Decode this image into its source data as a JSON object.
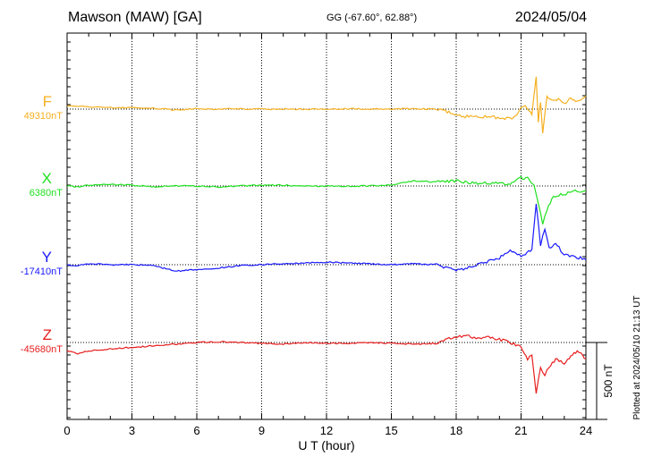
{
  "header": {
    "station": "Mawson (MAW)  [GA]",
    "coords": "GG (-67.60°,  62.88°)",
    "date": "2024/05/04"
  },
  "footer_note": "Plotted at 2024/05/10 21:13 UT",
  "chart_data": {
    "type": "line",
    "title": "Mawson (MAW)  [GA]",
    "xlabel": "U T (hour)",
    "xlim": [
      0,
      24
    ],
    "xticks": [
      "0",
      "3",
      "6",
      "9",
      "12",
      "15",
      "18",
      "21",
      "24"
    ],
    "grid": true,
    "scale_bar": {
      "label": "500 nT",
      "value_nT": 500
    },
    "y_range_nT": 2350,
    "series": [
      {
        "name": "F",
        "baseline": "49310nT",
        "color": "#f5b020",
        "x": [
          0,
          0.5,
          1,
          2,
          3,
          4,
          5,
          6,
          7,
          8,
          9,
          10,
          11,
          12,
          13,
          14,
          15,
          16,
          17,
          17.5,
          18,
          18.5,
          19,
          19.5,
          20,
          20.5,
          20.8,
          21,
          21.2,
          21.5,
          21.7,
          21.8,
          21.9,
          22,
          22.2,
          22.5,
          22.8,
          23,
          23.3,
          23.6,
          24
        ],
        "values": [
          20,
          18,
          12,
          8,
          10,
          5,
          -5,
          2,
          0,
          2,
          0,
          0,
          -2,
          0,
          2,
          0,
          0,
          3,
          0,
          -10,
          -40,
          -45,
          -50,
          -40,
          -55,
          -60,
          -40,
          10,
          20,
          -30,
          200,
          -80,
          50,
          -150,
          80,
          50,
          60,
          30,
          70,
          40,
          80
        ]
      },
      {
        "name": "X",
        "baseline": "6380nT",
        "color": "#1ee01e",
        "x": [
          0,
          0.5,
          1,
          2,
          3,
          4,
          5,
          6,
          7,
          8,
          9,
          10,
          11,
          12,
          13,
          14,
          15,
          16,
          17,
          18,
          19,
          20,
          20.5,
          21,
          21.3,
          21.6,
          21.8,
          22,
          22.2,
          22.5,
          23,
          23.5,
          24
        ],
        "values": [
          0,
          -5,
          5,
          10,
          5,
          -5,
          0,
          0,
          -5,
          0,
          5,
          5,
          0,
          0,
          0,
          0,
          5,
          30,
          25,
          30,
          15,
          20,
          10,
          50,
          45,
          0,
          -100,
          -240,
          -140,
          -60,
          -50,
          -30,
          -30
        ]
      },
      {
        "name": "Y",
        "baseline": "-17410nT",
        "color": "#1a1aff",
        "x": [
          0,
          0.5,
          1,
          2,
          3,
          4,
          5,
          6,
          7,
          8,
          9,
          10,
          11,
          12,
          13,
          14,
          15,
          16,
          17,
          18,
          18.5,
          19,
          19.5,
          20,
          20.5,
          21,
          21.2,
          21.5,
          21.7,
          21.9,
          22.1,
          22.3,
          22.6,
          23,
          23.5,
          24
        ],
        "values": [
          0,
          -5,
          5,
          0,
          0,
          -5,
          -40,
          -30,
          -20,
          -5,
          0,
          5,
          10,
          15,
          10,
          5,
          0,
          5,
          0,
          -30,
          -20,
          0,
          20,
          40,
          90,
          50,
          60,
          100,
          370,
          120,
          220,
          100,
          130,
          60,
          50,
          30
        ]
      },
      {
        "name": "Z",
        "baseline": "-45680nT",
        "color": "#e81e1e",
        "x": [
          0,
          0.5,
          1,
          2,
          3,
          4,
          5,
          6,
          7,
          8,
          9,
          10,
          11,
          12,
          13,
          14,
          15,
          16,
          17,
          18,
          18.5,
          19,
          19.5,
          20,
          20.5,
          21,
          21.3,
          21.5,
          21.7,
          21.9,
          22.1,
          22.3,
          22.6,
          23,
          23.3,
          23.6,
          24
        ],
        "values": [
          -50,
          -70,
          -50,
          -40,
          -30,
          -20,
          -10,
          0,
          5,
          0,
          -5,
          -10,
          0,
          -5,
          -5,
          0,
          -5,
          -10,
          -5,
          35,
          40,
          20,
          30,
          20,
          0,
          -30,
          -100,
          -80,
          -310,
          -150,
          -200,
          -150,
          -100,
          -130,
          -80,
          -50,
          -100
        ]
      }
    ]
  }
}
